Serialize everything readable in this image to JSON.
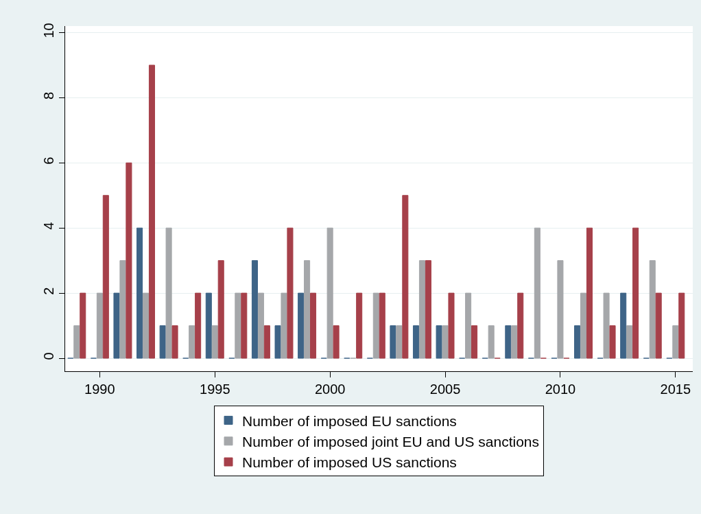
{
  "chart_data": {
    "type": "bar",
    "x": [
      1989,
      1990,
      1991,
      1992,
      1993,
      1994,
      1995,
      1996,
      1997,
      1998,
      1999,
      2000,
      2001,
      2002,
      2003,
      2004,
      2005,
      2006,
      2007,
      2008,
      2009,
      2010,
      2011,
      2012,
      2013,
      2014,
      2015
    ],
    "series": [
      {
        "name": "Number of imposed EU sanctions",
        "color": "#3e6487",
        "values": [
          0,
          0,
          2,
          4,
          1,
          0,
          2,
          0,
          3,
          1,
          2,
          0,
          0,
          0,
          1,
          1,
          1,
          0,
          0,
          1,
          0,
          0,
          1,
          0,
          2,
          0,
          0
        ]
      },
      {
        "name": "Number of imposed joint EU and US sanctions",
        "color": "#a5a7aa",
        "values": [
          1,
          2,
          3,
          2,
          4,
          1,
          1,
          2,
          2,
          2,
          3,
          4,
          0,
          2,
          1,
          3,
          1,
          2,
          1,
          1,
          4,
          3,
          2,
          2,
          1,
          3,
          1
        ]
      },
      {
        "name": "Number of imposed US sanctions",
        "color": "#a6404a",
        "values": [
          2,
          5,
          6,
          9,
          1,
          2,
          3,
          2,
          1,
          4,
          2,
          1,
          2,
          2,
          5,
          3,
          2,
          1,
          0,
          2,
          0,
          0,
          4,
          1,
          4,
          2,
          2
        ]
      }
    ],
    "xlim": [
      1988.5,
      2015.75
    ],
    "xticks": [
      1990,
      1995,
      2000,
      2005,
      2010,
      2015
    ],
    "ylim": [
      -0.4,
      10.2
    ],
    "yticks": [
      0,
      2,
      4,
      6,
      8,
      10
    ],
    "grid": "y",
    "legend": "bottom"
  }
}
